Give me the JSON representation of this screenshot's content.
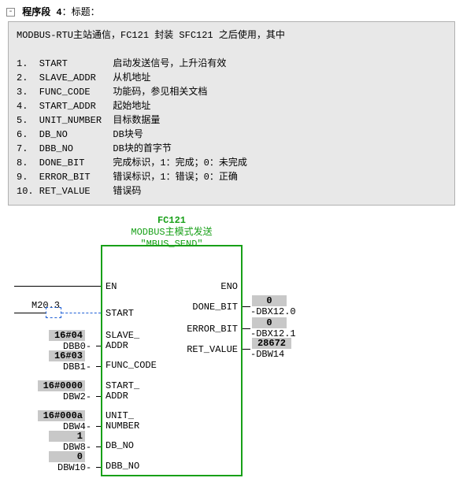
{
  "header": {
    "segment_label": "程序段 4",
    "title_label": "：标题",
    "colon": "："
  },
  "comment": {
    "line0": "MODBUS-RTU主站通信，FC121 封装 SFC121 之后使用，其中",
    "params": [
      {
        "n": "1.",
        "name": "START",
        "desc": "启动发送信号，上升沿有效"
      },
      {
        "n": "2.",
        "name": "SLAVE_ADDR",
        "desc": "从机地址"
      },
      {
        "n": "3.",
        "name": "FUNC_CODE",
        "desc": "功能码，参见相关文档"
      },
      {
        "n": "4.",
        "name": "START_ADDR",
        "desc": "起始地址"
      },
      {
        "n": "5.",
        "name": "UNIT_NUMBER",
        "desc": "目标数据量"
      },
      {
        "n": "6.",
        "name": "DB_NO",
        "desc": "DB块号"
      },
      {
        "n": "7.",
        "name": "DBB_NO",
        "desc": "DB块的首字节"
      },
      {
        "n": "8.",
        "name": "DONE_BIT",
        "desc": "完成标识，1：完成；0：未完成"
      },
      {
        "n": "9.",
        "name": "ERROR_BIT",
        "desc": "错误标识，1：错误；0：正确"
      },
      {
        "n": "10.",
        "name": "RET_VALUE",
        "desc": "错误码"
      }
    ]
  },
  "block": {
    "name": "FC121",
    "title": "MODBUS主模式发送",
    "symbol": "\"MBUS_SEND\"",
    "pins_left": {
      "en": "EN",
      "start": "START",
      "slave_addr1": "SLAVE_",
      "slave_addr2": "ADDR",
      "func_code": "FUNC_CODE",
      "start_addr1": "START_",
      "start_addr2": "ADDR",
      "unit_num1": "UNIT_",
      "unit_num2": "NUMBER",
      "db_no": "DB_NO",
      "dbb_no": "DBB_NO"
    },
    "pins_right": {
      "eno": "ENO",
      "done_bit": "DONE_BIT",
      "error_bit": "ERROR_BIT",
      "ret_value": "RET_VALUE"
    }
  },
  "operands": {
    "start_contact": "M20.3",
    "slave_addr_val": "16#04",
    "slave_addr_src": "DBB0",
    "func_code_val": "16#03",
    "func_code_src": "DBB1",
    "start_addr_val": "16#0000",
    "start_addr_src": "DBW2",
    "unit_num_val": "16#000a",
    "unit_num_src": "DBW4",
    "db_no_val": "1",
    "db_no_src": "DBW8",
    "dbb_no_val": "0",
    "dbb_no_src": "DBW10",
    "done_bit_val": "0",
    "done_bit_dst": "DBX12.0",
    "error_bit_val": "0",
    "error_bit_dst": "DBX12.1",
    "ret_value_val": "28672",
    "ret_value_dst": "DBW14"
  },
  "dash": "-"
}
